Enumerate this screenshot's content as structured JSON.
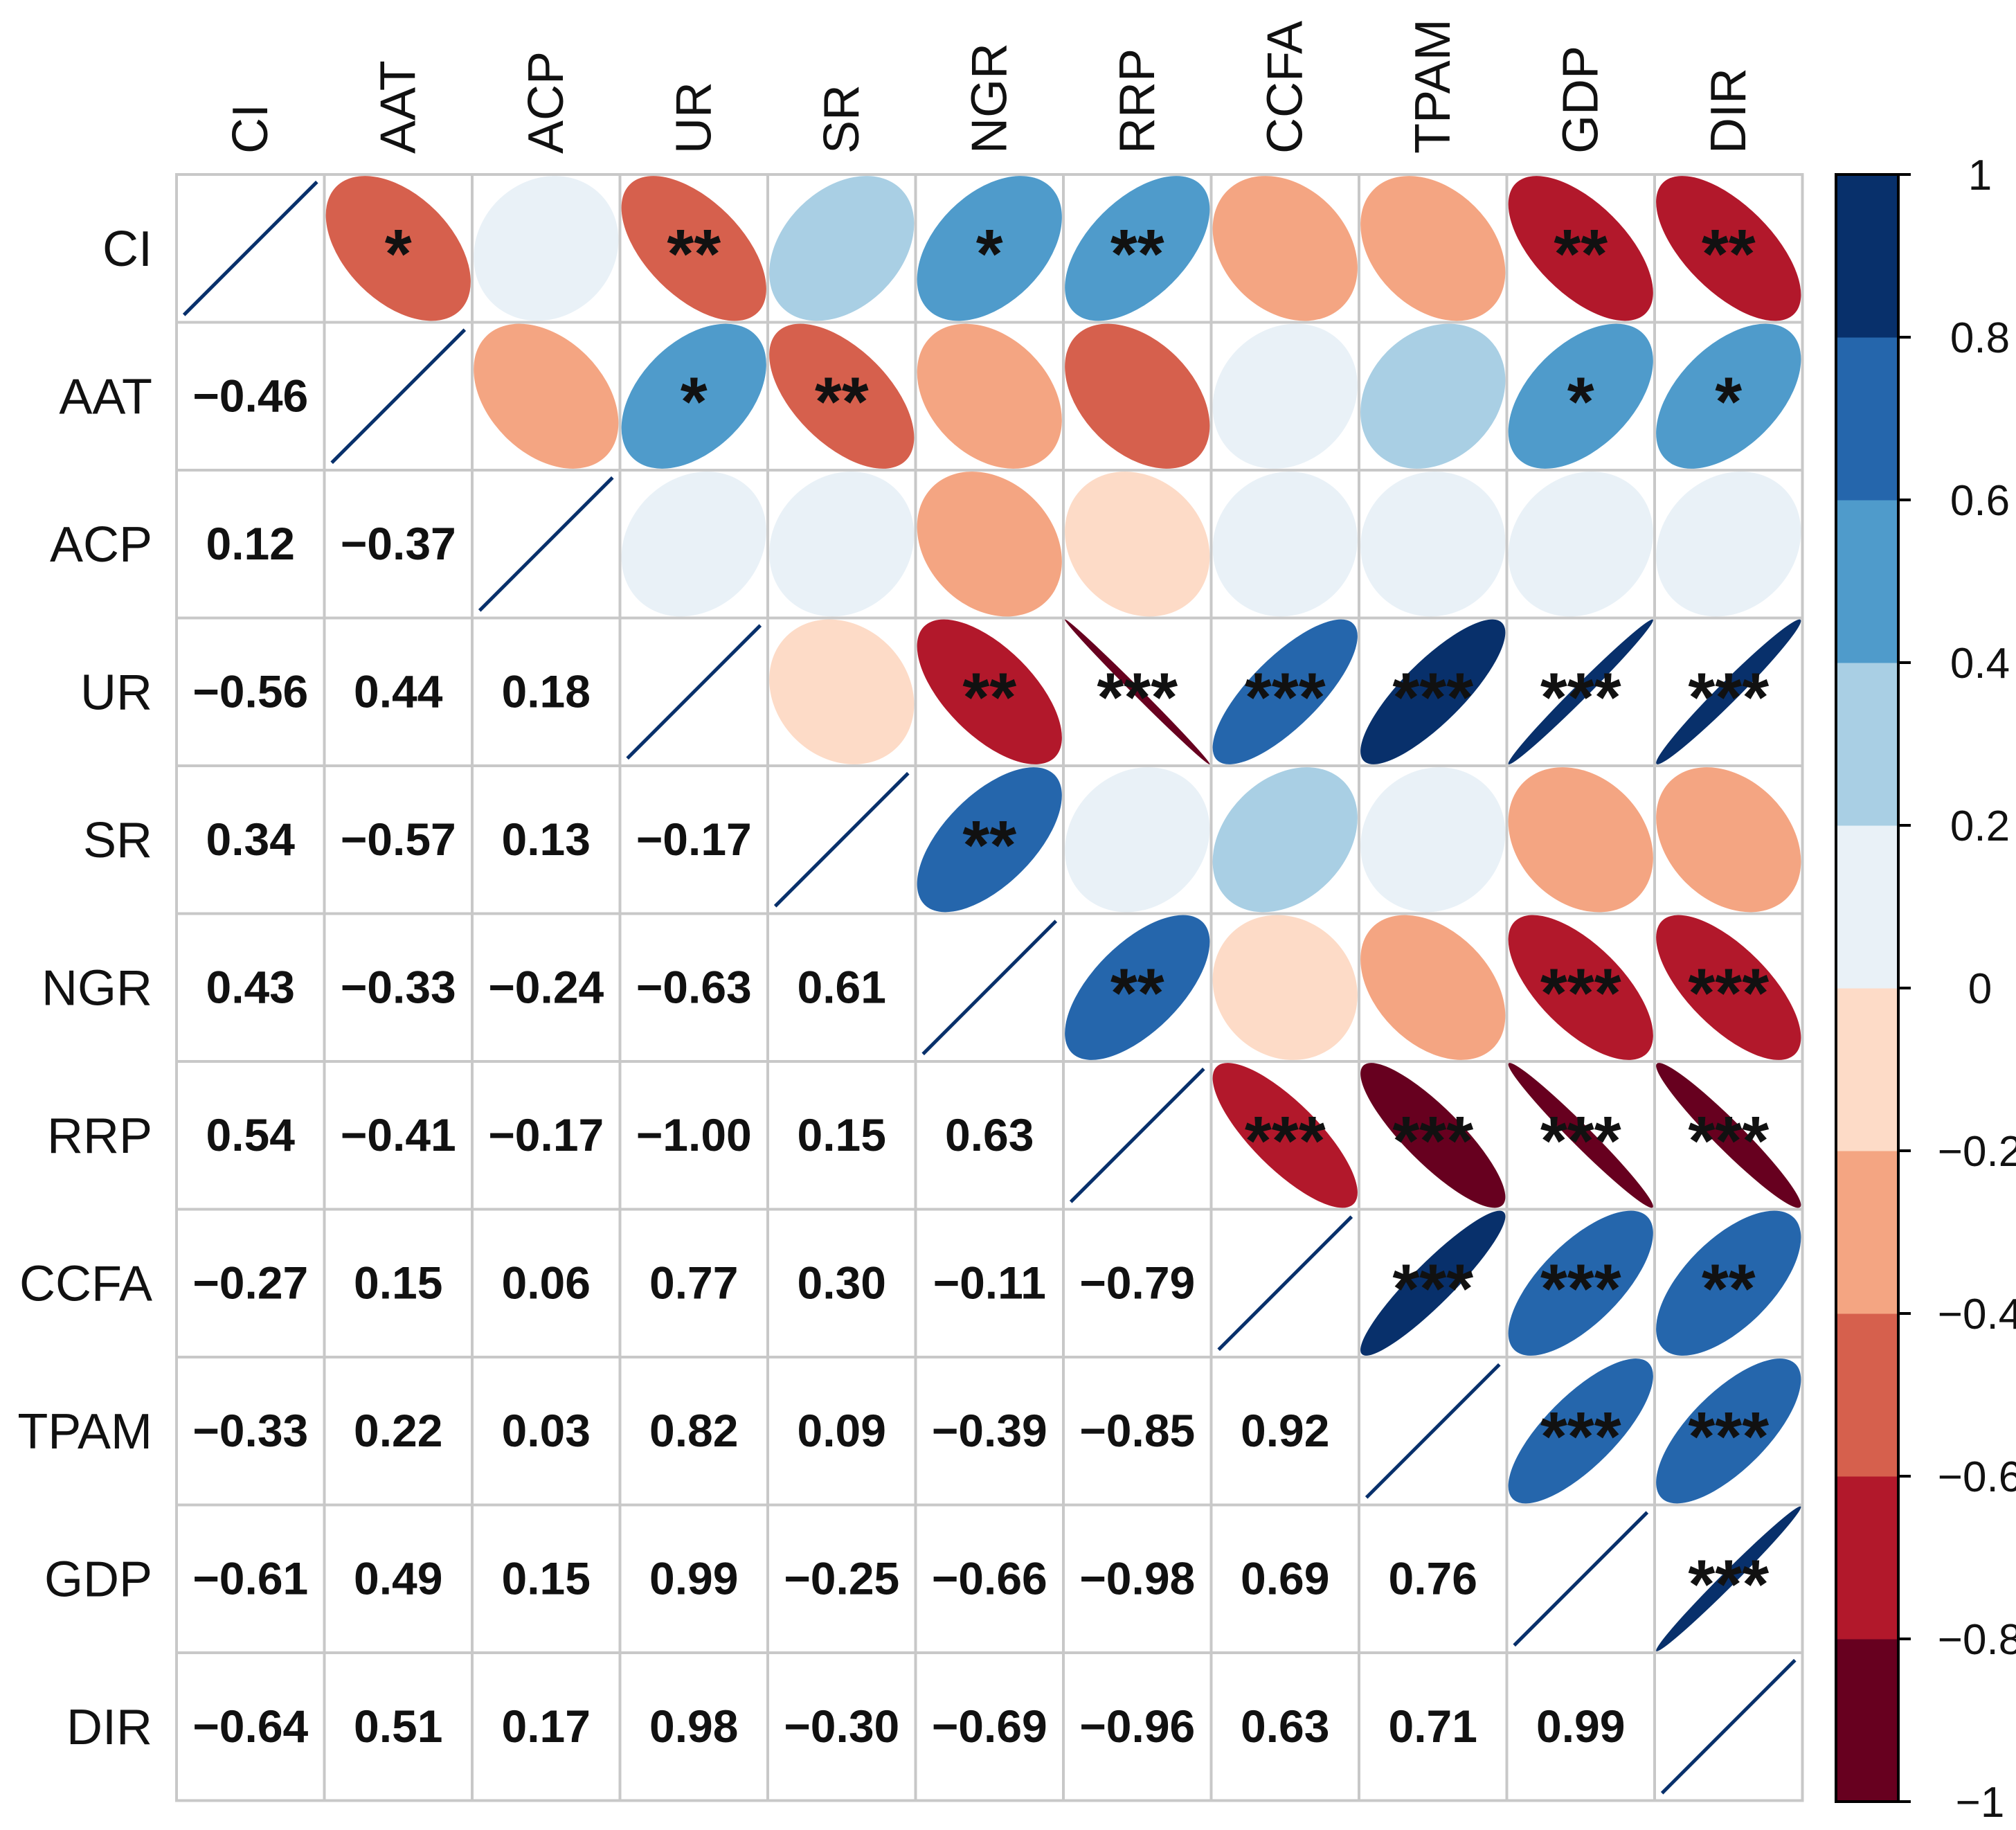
{
  "chart_data": {
    "type": "heatmap",
    "subtype": "correlation-matrix",
    "variables": [
      "CI",
      "AAT",
      "ACP",
      "UR",
      "SR",
      "NGR",
      "RRP",
      "CCFA",
      "TPAM",
      "GDP",
      "DIR"
    ],
    "lower_labels": [
      [],
      [
        "−0.46"
      ],
      [
        "0.12",
        "−0.37"
      ],
      [
        "−0.56",
        "0.44",
        "0.18"
      ],
      [
        "0.34",
        "−0.57",
        "0.13",
        "−0.17"
      ],
      [
        "0.43",
        "−0.33",
        "−0.24",
        "−0.63",
        "0.61"
      ],
      [
        "0.54",
        "−0.41",
        "−0.17",
        "−1.00",
        "0.15",
        "0.63"
      ],
      [
        "−0.27",
        "0.15",
        "0.06",
        "0.77",
        "0.30",
        "−0.11",
        "−0.79"
      ],
      [
        "−0.33",
        "0.22",
        "0.03",
        "0.82",
        "0.09",
        "−0.39",
        "−0.85",
        "0.92"
      ],
      [
        "−0.61",
        "0.49",
        "0.15",
        "0.99",
        "−0.25",
        "−0.66",
        "−0.98",
        "0.69",
        "0.76"
      ],
      [
        "−0.64",
        "0.51",
        "0.17",
        "0.98",
        "−0.30",
        "−0.69",
        "−0.96",
        "0.63",
        "0.71",
        "0.99"
      ]
    ],
    "significance_upper": [
      [
        "",
        "*",
        "",
        "**",
        "",
        "*",
        "**",
        "",
        "",
        "**",
        "**"
      ],
      [
        "",
        "",
        "",
        "*",
        "**",
        "",
        "",
        "",
        "",
        "*",
        "*"
      ],
      [
        "",
        "",
        "",
        "",
        "",
        "",
        "",
        "",
        "",
        "",
        ""
      ],
      [
        "",
        "",
        "",
        "",
        "",
        "**",
        "***",
        "***",
        "***",
        "***",
        "***"
      ],
      [
        "",
        "",
        "",
        "",
        "",
        "**",
        "",
        "",
        "",
        "",
        ""
      ],
      [
        "",
        "",
        "",
        "",
        "",
        "",
        "**",
        "",
        "",
        "***",
        "***"
      ],
      [
        "",
        "",
        "",
        "",
        "",
        "",
        "",
        "***",
        "***",
        "***",
        "***"
      ],
      [
        "",
        "",
        "",
        "",
        "",
        "",
        "",
        "",
        "***",
        "***",
        "**"
      ],
      [
        "",
        "",
        "",
        "",
        "",
        "",
        "",
        "",
        "",
        "***",
        "***"
      ],
      [
        "",
        "",
        "",
        "",
        "",
        "",
        "",
        "",
        "",
        "",
        "***"
      ],
      [
        "",
        "",
        "",
        "",
        "",
        "",
        "",
        "",
        "",
        "",
        ""
      ]
    ],
    "colorbar": {
      "ticks": [
        "1",
        "0.8",
        "0.6",
        "0.4",
        "0.2",
        "0",
        "−0.2",
        "−0.4",
        "−0.6",
        "−0.8",
        "−1"
      ],
      "range": [
        -1,
        1
      ],
      "colors": [
        "#67001F",
        "#B2182B",
        "#D6604D",
        "#F4A582",
        "#FDDBC7",
        "#E9F1F7",
        "#A9CFE4",
        "#4F9BCB",
        "#2566AC",
        "#08306B"
      ]
    },
    "upper": "ellipse",
    "lower": "number",
    "diagonal": "line",
    "legend": "right"
  }
}
